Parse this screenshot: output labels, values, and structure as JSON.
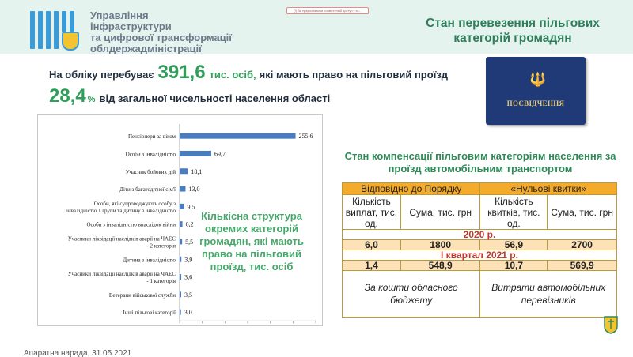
{
  "header": {
    "org_lines": [
      "Управління",
      "інфраструктури",
      "та цифрової трансформації",
      "облдержадміністрації"
    ],
    "notice": "(!) Ви предоставили совместный доступ к эк...",
    "title": "Стан перевезення пільгових категорій громадян"
  },
  "summary": {
    "line1_prefix": "На обліку перебуває",
    "line1_value": "391,6",
    "line1_unit": "тис. осіб,",
    "line1_suffix": "які мають право на пільговий проїзд",
    "line2_value": "28,4",
    "line2_unit": "%",
    "line2_suffix": "від загальної чисельності населення області"
  },
  "id_card": {
    "label": "ПОСВІДЧЕННЯ",
    "emblem": "trident-icon"
  },
  "chart_caption": "Кількісна структура окремих категорій громадян, які мають право на пільговий проїзд, тис. осіб",
  "chart_data": {
    "type": "bar",
    "orientation": "horizontal",
    "categories": [
      [
        "Пенсіонери за віком"
      ],
      [
        "Особи з інвалідністю"
      ],
      [
        "Учасник бойових дій"
      ],
      [
        "Діти з багатодітної сім'ї"
      ],
      [
        "Особи, які супроводжують особу з",
        "інвалідністю 1 групи та дитину з інвалідністю"
      ],
      [
        "Особи з інвалідністю внаслідок війни"
      ],
      [
        "Учасники ліквідації наслідків аварії на ЧАЕС",
        "- 2 категорія"
      ],
      [
        "Дитина з інвалідністю"
      ],
      [
        "Учасники ліквідації наслідків аварії на ЧАЕС",
        "- 1 категорія"
      ],
      [
        "Ветерани військової служби"
      ],
      [
        "Інші пільгові категорії"
      ]
    ],
    "values": [
      255.6,
      69.7,
      18.1,
      13.0,
      9.5,
      6.2,
      5.5,
      3.9,
      3.6,
      3.5,
      3.0
    ],
    "value_labels": [
      "255,6",
      "69,7",
      "18,1",
      "13,0",
      "9,5",
      "6,2",
      "5,5",
      "3,9",
      "3,6",
      "3,5",
      "3,0"
    ],
    "ticks": [
      0,
      50,
      100,
      150,
      200,
      250,
      300
    ],
    "tick_labels": [
      "0,0",
      "50,0",
      "100,0",
      "150,0",
      "200,0",
      "250,0",
      "300,0"
    ],
    "xlim": [
      0,
      300
    ],
    "bar_color": "#4a7cc0",
    "grid": false
  },
  "compensation": {
    "title": "Стан компенсації пільговим категоріям населення за проїзд автомобільним транспортом",
    "col_group1": "Відповідно до Порядку",
    "col_group2": "«Нульові квитки»",
    "sub1": "Кількість виплат, тис. од.",
    "sub2": "Сума, тис. грн",
    "sub3": "Кількість квитків, тис. од.",
    "sub4": "Сума, тис. грн",
    "year1": "2020 р.",
    "row1": [
      "6,0",
      "1800",
      "56,9",
      "2700"
    ],
    "year2": "І квартал 2021 р.",
    "row2": [
      "1,4",
      "548,9",
      "10,7",
      "569,9"
    ],
    "foot1": "За кошти обласного бюджету",
    "foot2": "Витрати автомобільних перевізників"
  },
  "footer_text": "Апаратна нарада, 31.05.2021"
}
